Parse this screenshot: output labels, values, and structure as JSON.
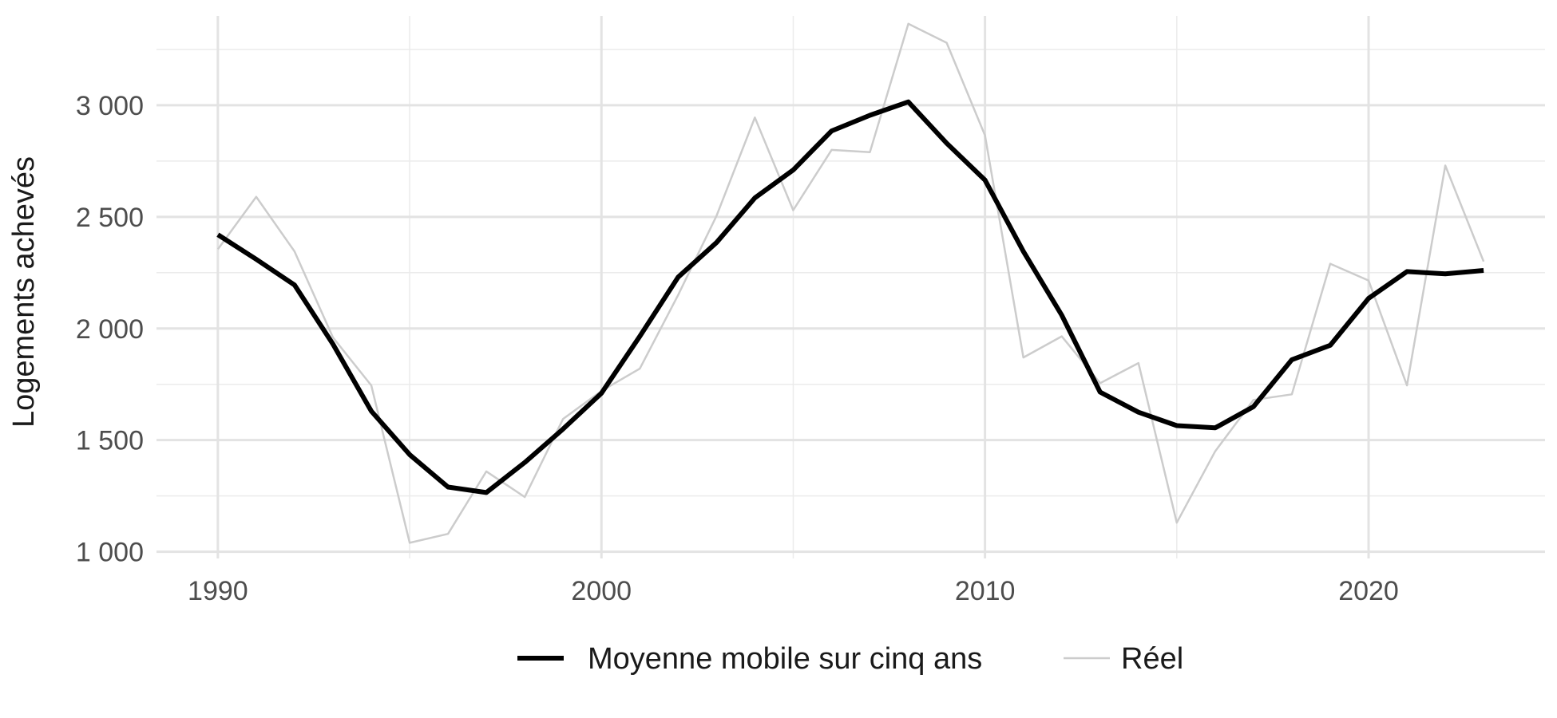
{
  "chart_data": {
    "type": "line",
    "title": "",
    "xlabel": "",
    "ylabel": "Logements achevés",
    "xlim": [
      1988.4,
      2024.6
    ],
    "ylim": [
      970,
      3400
    ],
    "x_ticks": [
      {
        "value": 1990,
        "label": "1990"
      },
      {
        "value": 2000,
        "label": "2000"
      },
      {
        "value": 2010,
        "label": "2010"
      },
      {
        "value": 2020,
        "label": "2020"
      }
    ],
    "x_minor_ticks": [
      1995,
      2005,
      2015
    ],
    "y_ticks": [
      {
        "value": 1000,
        "label": "1 000"
      },
      {
        "value": 1500,
        "label": "1 500"
      },
      {
        "value": 2000,
        "label": "2 000"
      },
      {
        "value": 2500,
        "label": "2 500"
      },
      {
        "value": 3000,
        "label": "3 000"
      }
    ],
    "y_minor_ticks": [
      1250,
      1750,
      2250,
      2750,
      3250
    ],
    "grid": true,
    "legend_position": "bottom",
    "x": [
      1990,
      1991,
      1992,
      1993,
      1994,
      1995,
      1996,
      1997,
      1998,
      1999,
      2000,
      2001,
      2002,
      2003,
      2004,
      2005,
      2006,
      2007,
      2008,
      2009,
      2010,
      2011,
      2012,
      2013,
      2014,
      2015,
      2016,
      2017,
      2018,
      2019,
      2020,
      2021,
      2022,
      2023
    ],
    "series": [
      {
        "name": "Moyenne mobile sur cinq ans",
        "color": "#000000",
        "values": [
          2420,
          2310,
          2195,
          1930,
          1630,
          1435,
          1290,
          1265,
          1400,
          1550,
          1710,
          1965,
          2230,
          2385,
          2585,
          2710,
          2885,
          2955,
          3015,
          2830,
          2665,
          2345,
          2060,
          1715,
          1625,
          1565,
          1555,
          1650,
          1860,
          1925,
          2135,
          2255,
          2245,
          2260
        ]
      },
      {
        "name": "Réel",
        "color": "#cccccc",
        "values": [
          2355,
          2590,
          2345,
          1960,
          1745,
          1040,
          1080,
          1360,
          1245,
          1595,
          1720,
          1820,
          2150,
          2505,
          2945,
          2530,
          2800,
          2790,
          3365,
          3280,
          2865,
          1870,
          1965,
          1755,
          1845,
          1130,
          1450,
          1680,
          1705,
          2290,
          2215,
          1745,
          2730,
          2300
        ]
      }
    ]
  }
}
